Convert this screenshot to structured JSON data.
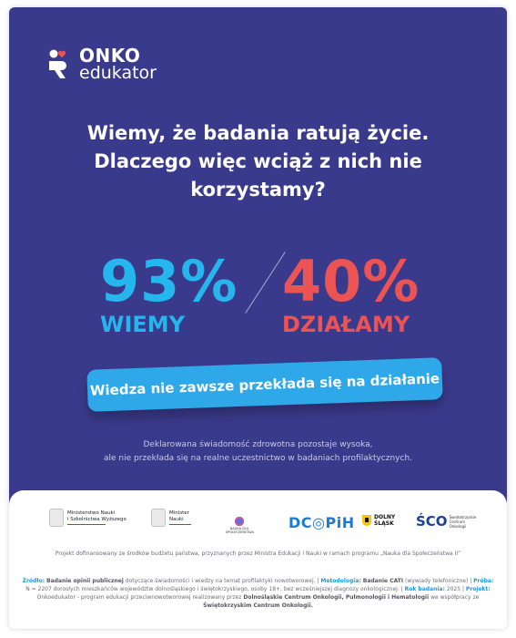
{
  "logo": {
    "line1": "ONKO",
    "line2": "edukator"
  },
  "headline": {
    "line1": "Wiemy, że badania ratują życie.",
    "line2": "Dlaczego więc wciąż z nich nie",
    "line3": "korzystamy?"
  },
  "stats": {
    "left": {
      "value": "93%",
      "label": "WIEMY",
      "color": "#25b6ee"
    },
    "right": {
      "value": "40%",
      "label": "DZIAŁAMY",
      "color": "#ec5353"
    }
  },
  "banner": "Wiedza nie zawsze przekłada się na działanie",
  "description": {
    "line1": "Deklarowana świadomość zdrowotna pozostaje wysoka,",
    "line2": "ale nie przekłada się na realne uczestnictwo w badaniach profilaktycznych."
  },
  "partners": {
    "ministry1": {
      "line1": "Ministerstwo Nauki",
      "line2": "i Szkolnictwa Wyższego"
    },
    "ministry2": {
      "line1": "Minister",
      "line2": "Nauki"
    },
    "nauka": "NAUKA DLA SPOŁECZEŃSTWA",
    "dcopih": "DC◎PiH",
    "dolny": {
      "line1": "DOLNY",
      "line2": "ŚLĄSK"
    },
    "sco": {
      "mark": "ŚCO",
      "line1": "Świętokrzyskie",
      "line2": "Centrum",
      "line3": "Onkologii"
    }
  },
  "funding": "Projekt dofinansowany ze środków budżetu państwa, przyznanych przez Ministra Edukacji i Nauki w ramach programu „Nauka dla Społeczeństwa II”",
  "source": {
    "zrodlo_k": "Źródło:",
    "zrodlo_v": "Badanie opinii publicznej",
    "t1": "dotyczące świadomości i wiedzy na temat profilaktyki nowotworowej.",
    "met_k": "Metodologia:",
    "met_v": "Badanie CATI",
    "t2": "(wywiady telefoniczne)",
    "proba_k": "Próba:",
    "t3": "N = 2207 dorosłych mieszkańców województw dolnośląskiego i świętokrzyskiego, osoby 18+, bez wcześniejszej diagnozy onkologicznej.",
    "rok_k": "Rok badania:",
    "t4": "2025",
    "proj_k": "Projekt:",
    "t5": "Onkoedukator - program edukacji przeciwnowotworowej realizowany przez",
    "proj_v": "Dolnośląskie Centrum Onkologii, Pulmonologii i Hematologii",
    "t6": "we współpracy ze",
    "proj_v2": "Świętokrzyskim Centrum Onkologii."
  }
}
